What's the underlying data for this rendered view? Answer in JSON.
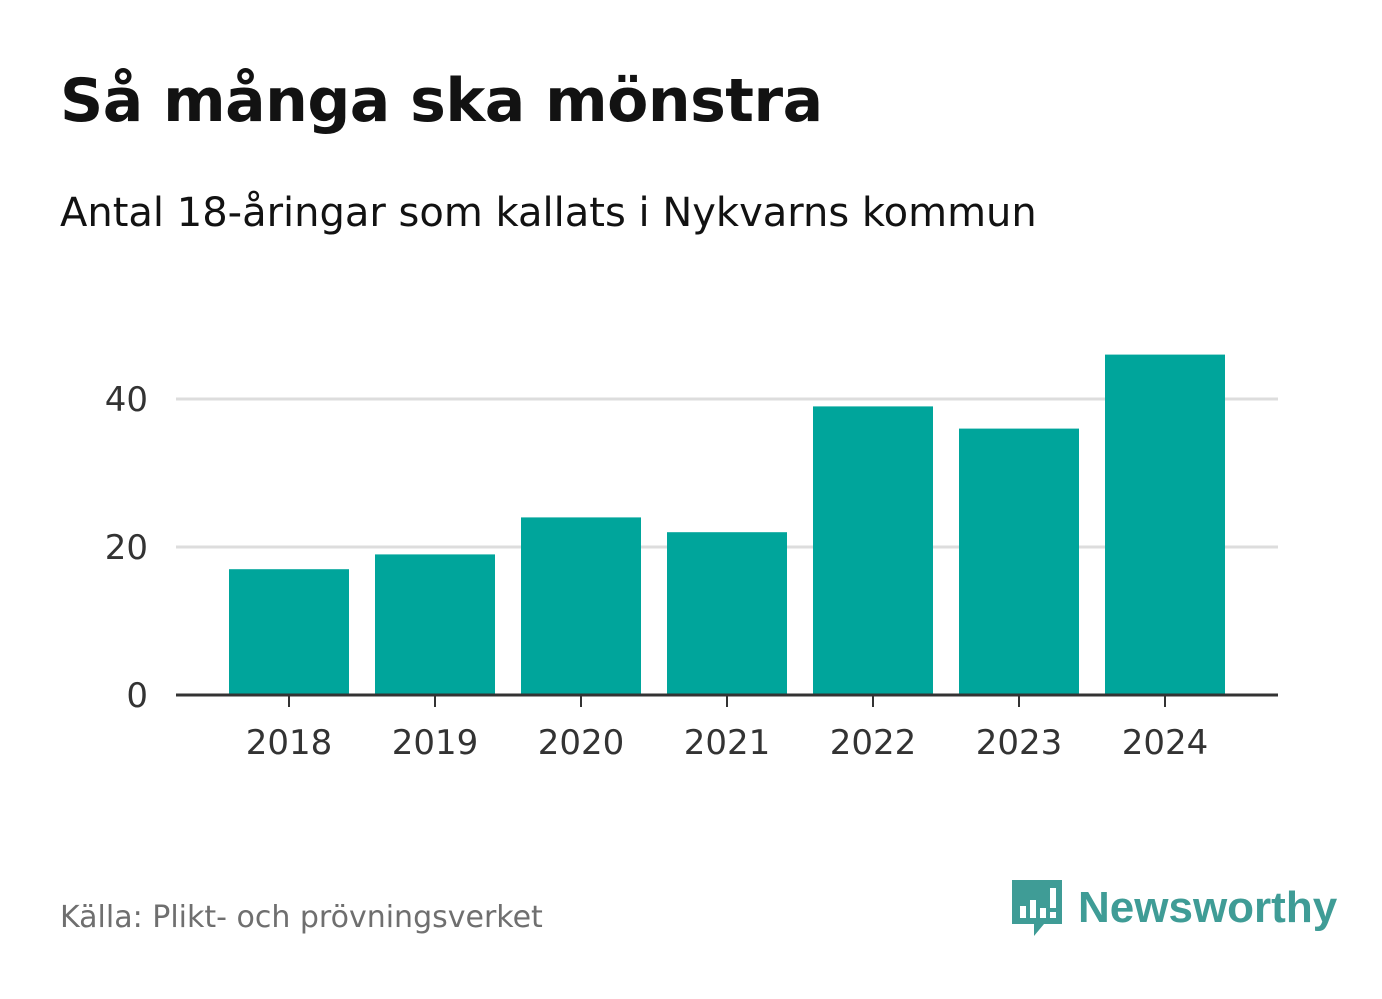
{
  "header": {
    "title": "Så många ska mönstra",
    "subtitle": "Antal 18-åringar som kallats i Nykvarns kommun"
  },
  "footer": {
    "source": "Källa: Plikt- och prövningsverket",
    "brand": "Newsworthy"
  },
  "colors": {
    "bar": "#00a59b",
    "brand": "#3f9c96",
    "grid": "#dddddd",
    "axis": "#333333"
  },
  "chart_data": {
    "type": "bar",
    "title": "Så många ska mönstra",
    "subtitle": "Antal 18-åringar som kallats i Nykvarns kommun",
    "categories": [
      "2018",
      "2019",
      "2020",
      "2021",
      "2022",
      "2023",
      "2024"
    ],
    "values": [
      17,
      19,
      24,
      22,
      39,
      36,
      46
    ],
    "yticks": [
      0,
      20,
      40
    ],
    "ylim": [
      0,
      48
    ],
    "xlabel": "",
    "ylabel": "",
    "grid": true,
    "legend": "none"
  }
}
